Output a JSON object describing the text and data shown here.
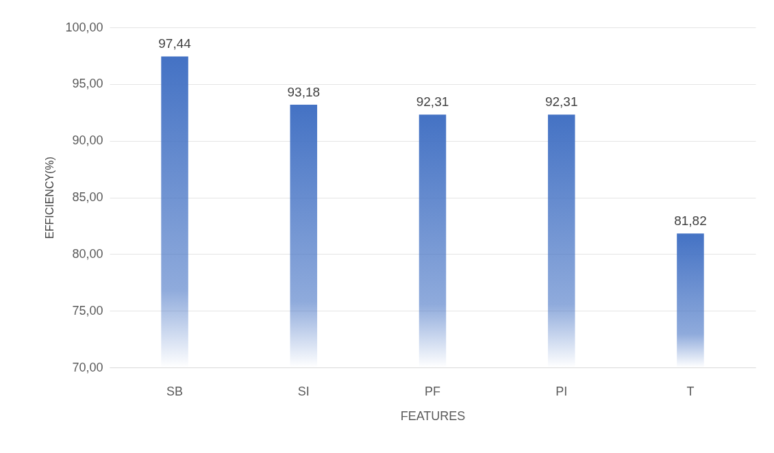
{
  "chart_data": {
    "type": "bar",
    "xlabel": "FEATURES",
    "ylabel": "EFFICIENCY(%)",
    "categories": [
      "SB",
      "SI",
      "PF",
      "PI",
      "T"
    ],
    "values": [
      97.44,
      93.18,
      92.31,
      92.31,
      81.82
    ],
    "value_labels": [
      "97,44",
      "93,18",
      "92,31",
      "92,31",
      "81,82"
    ],
    "color": "#4472c4",
    "ylim": [
      70,
      100
    ],
    "yticks": [
      {
        "value": 70,
        "label": "70,00"
      },
      {
        "value": 75,
        "label": "75,00"
      },
      {
        "value": 80,
        "label": "80,00"
      },
      {
        "value": 85,
        "label": "85,00"
      },
      {
        "value": 90,
        "label": "90,00"
      },
      {
        "value": 95,
        "label": "95,00"
      },
      {
        "value": 100,
        "label": "100,00"
      }
    ],
    "grid": "y"
  }
}
